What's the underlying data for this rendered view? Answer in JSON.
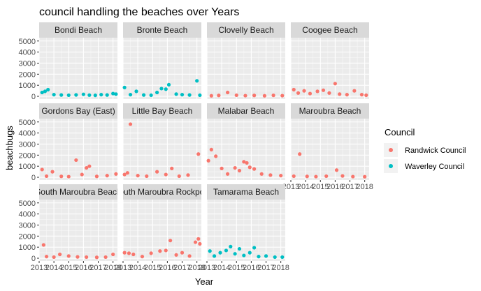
{
  "chart_data": {
    "type": "scatter",
    "title": "council handling the beaches over Years",
    "xlabel": "Year",
    "ylabel": "beachbugs",
    "facet_grid": {
      "columns": 4,
      "rows": 3
    },
    "xlim": [
      2013,
      2018.3
    ],
    "ylim": [
      -250,
      5300
    ],
    "x_ticks": [
      2013,
      2014,
      2015,
      2016,
      2017,
      2018
    ],
    "x_tick_labels": [
      "2013",
      "2014",
      "2015",
      "2016",
      "2017",
      "2018"
    ],
    "y_ticks": [
      0,
      1000,
      2000,
      3000,
      4000,
      5000
    ],
    "y_tick_labels": [
      "0",
      "1000",
      "2000",
      "3000",
      "4000",
      "5000"
    ],
    "legend": {
      "title": "Council",
      "position": "right",
      "entries": [
        {
          "name": "Randwick Council",
          "color": "#F8766D"
        },
        {
          "name": "Waverley Council",
          "color": "#00BFC4"
        }
      ]
    },
    "panels": [
      {
        "name": "Bondi Beach",
        "council": "Waverley Council",
        "points": [
          [
            2013.2,
            350
          ],
          [
            2013.4,
            450
          ],
          [
            2013.6,
            600
          ],
          [
            2014.0,
            150
          ],
          [
            2014.5,
            120
          ],
          [
            2015.0,
            100
          ],
          [
            2015.5,
            130
          ],
          [
            2016.0,
            180
          ],
          [
            2016.4,
            110
          ],
          [
            2016.8,
            90
          ],
          [
            2017.2,
            150
          ],
          [
            2017.6,
            120
          ],
          [
            2018.0,
            250
          ],
          [
            2018.2,
            200
          ]
        ]
      },
      {
        "name": "Bronte Beach",
        "council": "Waverley Council",
        "points": [
          [
            2013.1,
            800
          ],
          [
            2013.5,
            150
          ],
          [
            2013.9,
            450
          ],
          [
            2014.4,
            120
          ],
          [
            2014.9,
            100
          ],
          [
            2015.3,
            350
          ],
          [
            2015.6,
            700
          ],
          [
            2015.9,
            650
          ],
          [
            2016.1,
            1050
          ],
          [
            2016.6,
            200
          ],
          [
            2017.0,
            150
          ],
          [
            2017.5,
            120
          ],
          [
            2018.0,
            1400
          ],
          [
            2018.2,
            100
          ]
        ]
      },
      {
        "name": "Clovelly Beach",
        "council": "Randwick Council",
        "points": [
          [
            2013.3,
            50
          ],
          [
            2013.8,
            80
          ],
          [
            2014.4,
            350
          ],
          [
            2015.0,
            100
          ],
          [
            2015.6,
            60
          ],
          [
            2016.2,
            80
          ],
          [
            2016.9,
            50
          ],
          [
            2017.5,
            90
          ],
          [
            2018.1,
            60
          ]
        ]
      },
      {
        "name": "Coogee Beach",
        "council": "Randwick Council",
        "points": [
          [
            2013.2,
            600
          ],
          [
            2013.5,
            300
          ],
          [
            2013.9,
            500
          ],
          [
            2014.3,
            250
          ],
          [
            2014.8,
            450
          ],
          [
            2015.2,
            550
          ],
          [
            2015.6,
            300
          ],
          [
            2016.0,
            1150
          ],
          [
            2016.3,
            200
          ],
          [
            2016.8,
            150
          ],
          [
            2017.3,
            500
          ],
          [
            2017.8,
            150
          ],
          [
            2018.1,
            100
          ]
        ]
      },
      {
        "name": "Gordons Bay (East)",
        "council": "Randwick Council",
        "points": [
          [
            2013.2,
            700
          ],
          [
            2013.5,
            100
          ],
          [
            2013.9,
            500
          ],
          [
            2014.5,
            80
          ],
          [
            2015.0,
            60
          ],
          [
            2015.5,
            1550
          ],
          [
            2015.9,
            250
          ],
          [
            2016.2,
            850
          ],
          [
            2016.4,
            1000
          ],
          [
            2016.9,
            80
          ],
          [
            2017.6,
            150
          ],
          [
            2018.2,
            300
          ]
        ]
      },
      {
        "name": "Little Bay Beach",
        "council": "Randwick Council",
        "points": [
          [
            2013.1,
            250
          ],
          [
            2013.3,
            400
          ],
          [
            2013.5,
            4800
          ],
          [
            2014.0,
            150
          ],
          [
            2014.6,
            100
          ],
          [
            2015.3,
            500
          ],
          [
            2015.9,
            250
          ],
          [
            2016.3,
            800
          ],
          [
            2016.8,
            100
          ],
          [
            2017.4,
            200
          ],
          [
            2018.1,
            2100
          ]
        ]
      },
      {
        "name": "Malabar Beach",
        "council": "Randwick Council",
        "points": [
          [
            2013.1,
            1500
          ],
          [
            2013.3,
            2500
          ],
          [
            2013.6,
            1900
          ],
          [
            2014.0,
            800
          ],
          [
            2014.4,
            300
          ],
          [
            2014.9,
            850
          ],
          [
            2015.2,
            600
          ],
          [
            2015.5,
            1400
          ],
          [
            2015.7,
            1300
          ],
          [
            2015.9,
            900
          ],
          [
            2016.2,
            750
          ],
          [
            2016.7,
            300
          ],
          [
            2017.3,
            200
          ],
          [
            2018.0,
            150
          ]
        ]
      },
      {
        "name": "Maroubra Beach",
        "council": "Randwick Council",
        "points": [
          [
            2013.2,
            100
          ],
          [
            2013.6,
            2100
          ],
          [
            2014.1,
            80
          ],
          [
            2014.7,
            60
          ],
          [
            2015.4,
            100
          ],
          [
            2016.1,
            650
          ],
          [
            2016.5,
            120
          ],
          [
            2017.2,
            60
          ],
          [
            2018.0,
            50
          ]
        ]
      },
      {
        "name": "South Maroubra Beach",
        "council": "Randwick Council",
        "points": [
          [
            2013.3,
            1200
          ],
          [
            2013.5,
            150
          ],
          [
            2014.0,
            100
          ],
          [
            2014.4,
            350
          ],
          [
            2015.0,
            200
          ],
          [
            2015.6,
            120
          ],
          [
            2016.2,
            100
          ],
          [
            2016.9,
            80
          ],
          [
            2017.5,
            100
          ],
          [
            2018.0,
            350
          ]
        ]
      },
      {
        "name": "South Maroubra Rockpool",
        "council": "Randwick Council",
        "points": [
          [
            2013.1,
            500
          ],
          [
            2013.4,
            450
          ],
          [
            2013.7,
            350
          ],
          [
            2014.3,
            150
          ],
          [
            2014.9,
            450
          ],
          [
            2015.5,
            650
          ],
          [
            2015.9,
            700
          ],
          [
            2016.2,
            1600
          ],
          [
            2016.6,
            300
          ],
          [
            2017.0,
            500
          ],
          [
            2017.5,
            200
          ],
          [
            2017.9,
            1450
          ],
          [
            2018.1,
            1750
          ],
          [
            2018.2,
            1300
          ]
        ]
      },
      {
        "name": "Tamarama Beach",
        "council": "Waverley Council",
        "points": [
          [
            2013.2,
            650
          ],
          [
            2013.5,
            200
          ],
          [
            2013.9,
            500
          ],
          [
            2014.3,
            700
          ],
          [
            2014.6,
            1050
          ],
          [
            2014.9,
            400
          ],
          [
            2015.2,
            850
          ],
          [
            2015.5,
            250
          ],
          [
            2015.9,
            500
          ],
          [
            2016.2,
            950
          ],
          [
            2016.5,
            150
          ],
          [
            2017.0,
            200
          ],
          [
            2017.6,
            100
          ],
          [
            2018.1,
            100
          ]
        ]
      }
    ]
  }
}
